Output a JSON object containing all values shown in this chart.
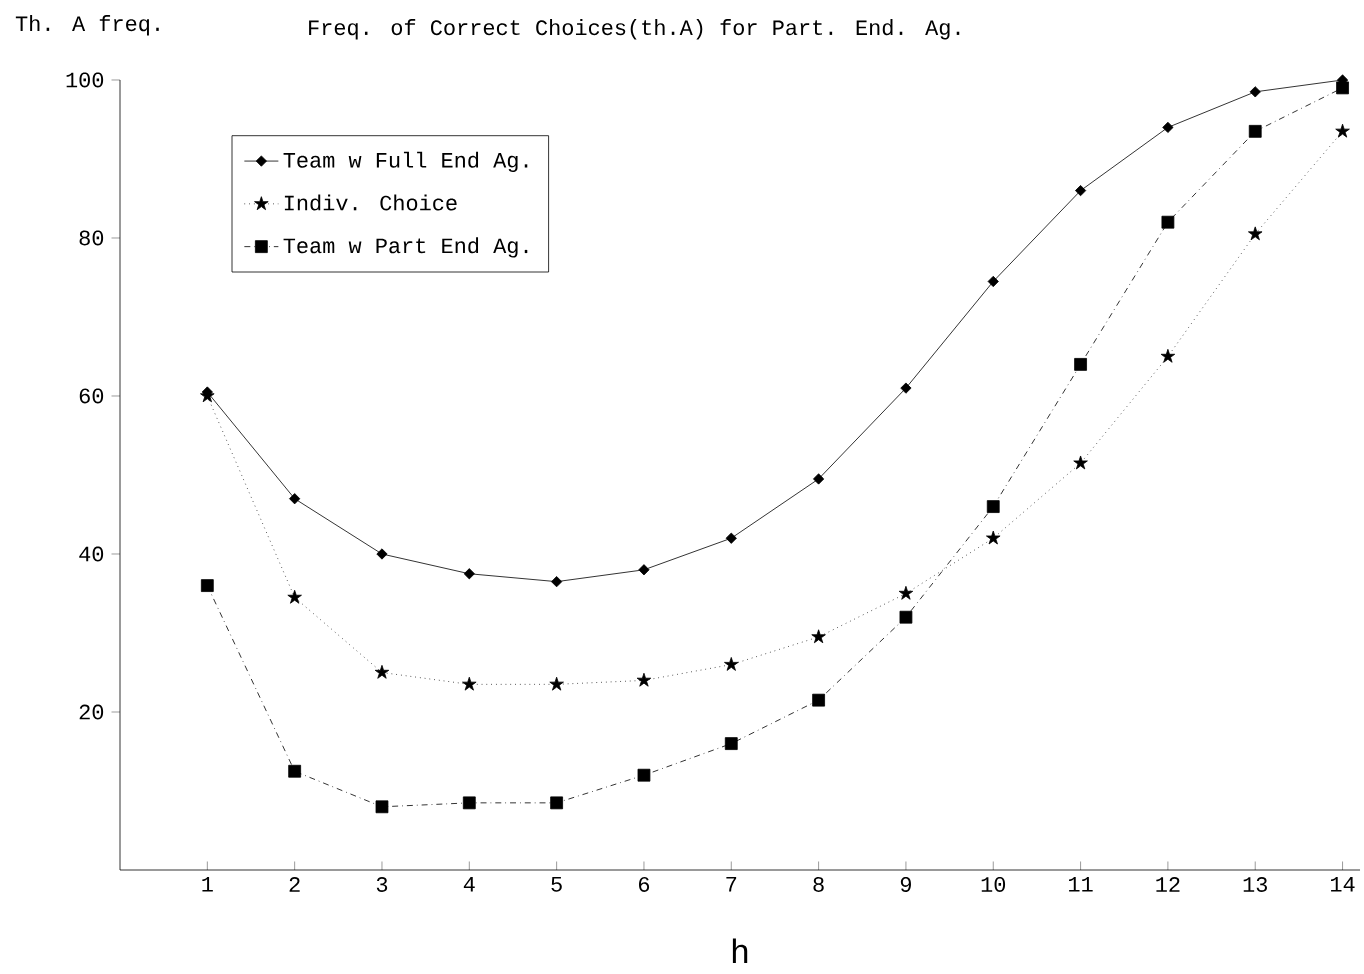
{
  "chart_data": {
    "type": "line",
    "title": "Freq. of Correct Choices(th.A) for Part. End. Ag.",
    "ylabel": "Th. A freq.",
    "xlabel": "h",
    "x": [
      1,
      2,
      3,
      4,
      5,
      6,
      7,
      8,
      9,
      10,
      11,
      12,
      13,
      14
    ],
    "series": [
      {
        "name": "Team w Full End Ag.",
        "color": "#000000",
        "marker": "diamond",
        "line_style": "solid",
        "values": [
          60.5,
          47,
          40,
          37.5,
          36.5,
          38,
          42,
          49.5,
          61,
          74.5,
          86,
          94,
          98.5,
          100
        ]
      },
      {
        "name": "Indiv. Choice",
        "color": "#000000",
        "marker": "star",
        "line_style": "dotted",
        "values": [
          60,
          34.5,
          25,
          23.5,
          23.5,
          24,
          26,
          29.5,
          35,
          42,
          51.5,
          65,
          80.5,
          93.5
        ]
      },
      {
        "name": "Team w Part End Ag.",
        "color": "#000000",
        "marker": "square",
        "line_style": "dashdot",
        "values": [
          36,
          12.5,
          8,
          8.5,
          8.5,
          12,
          16,
          21.5,
          32,
          46,
          64,
          82,
          93.5,
          99
        ]
      }
    ],
    "xlim": [
      0,
      14.2
    ],
    "ylim": [
      0,
      100
    ],
    "xticks": [
      1,
      2,
      3,
      4,
      5,
      6,
      7,
      8,
      9,
      10,
      11,
      12,
      13,
      14
    ],
    "yticks": [
      20,
      40,
      60,
      80,
      100
    ],
    "grid": false,
    "legend": "top left"
  }
}
